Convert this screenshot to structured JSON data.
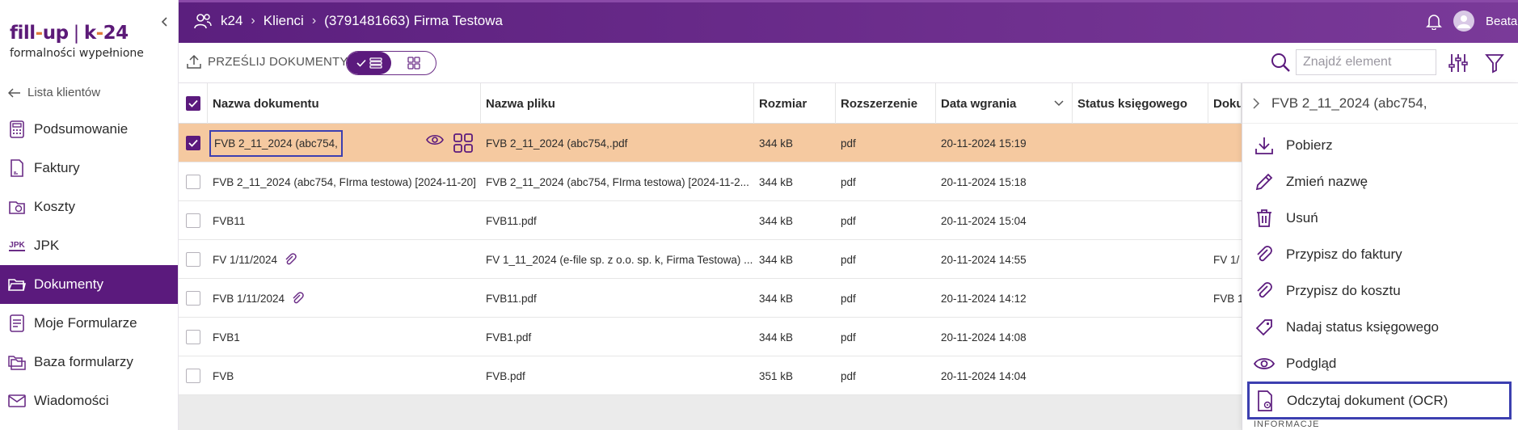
{
  "brand": {
    "logo_part1_a": "fill",
    "logo_part1_dash": "-",
    "logo_part1_b": "up",
    "logo_separator": "|",
    "logo_part2_a": "k",
    "logo_part2_dash": "-",
    "logo_part2_b": "24",
    "tagline": "formalności wypełnione"
  },
  "sidebar": {
    "back_label": "Lista klientów",
    "items": [
      {
        "label": "Podsumowanie",
        "icon": "calculator-icon"
      },
      {
        "label": "Faktury",
        "icon": "invoice-icon"
      },
      {
        "label": "Koszty",
        "icon": "costs-icon"
      },
      {
        "label": "JPK",
        "icon": "jpk-icon",
        "icon_text": "JPK"
      },
      {
        "label": "Dokumenty",
        "icon": "folder-icon",
        "active": true
      },
      {
        "label": "Moje Formularze",
        "icon": "form-icon"
      },
      {
        "label": "Baza formularzy",
        "icon": "folders-icon"
      },
      {
        "label": "Wiadomości",
        "icon": "mail-icon"
      }
    ]
  },
  "topbar": {
    "crumbs": [
      "k24",
      "Klienci",
      "(3791481663) Firma Testowa"
    ],
    "user_name": "Beata"
  },
  "toolbar": {
    "upload_label": "PRZEŚLIJ DOKUMENTY",
    "search_placeholder": "Znajdź element"
  },
  "table": {
    "columns": [
      "Nazwa dokumentu",
      "Nazwa pliku",
      "Rozmiar",
      "Rozszerzenie",
      "Data wgrania",
      "Status księgowego",
      "Doku"
    ],
    "rows": [
      {
        "name": "FVB 2_11_2024 (abc754,",
        "file": "FVB 2_11_2024 (abc754,.pdf",
        "size": "344 kB",
        "ext": "pdf",
        "date": "20-11-2024 15:19",
        "status": "",
        "doc": "",
        "selected": true,
        "clip": false
      },
      {
        "name": "FVB 2_11_2024 (abc754, FIrma testowa) [2024-11-20]",
        "file": "FVB 2_11_2024 (abc754, FIrma testowa) [2024-11-2...",
        "size": "344 kB",
        "ext": "pdf",
        "date": "20-11-2024 15:18",
        "status": "",
        "doc": "",
        "selected": false,
        "clip": false
      },
      {
        "name": "FVB11",
        "file": "FVB11.pdf",
        "size": "344 kB",
        "ext": "pdf",
        "date": "20-11-2024 15:04",
        "status": "",
        "doc": "",
        "selected": false,
        "clip": false
      },
      {
        "name": "FV 1/11/2024",
        "file": "FV 1_11_2024 (e-file sp. z o.o. sp. k, Firma Testowa) ...",
        "size": "344 kB",
        "ext": "pdf",
        "date": "20-11-2024 14:55",
        "status": "",
        "doc": "FV 1/",
        "selected": false,
        "clip": true
      },
      {
        "name": "FVB 1/11/2024",
        "file": "FVB11.pdf",
        "size": "344 kB",
        "ext": "pdf",
        "date": "20-11-2024 14:12",
        "status": "",
        "doc": "FVB 1",
        "selected": false,
        "clip": true
      },
      {
        "name": "FVB1",
        "file": "FVB1.pdf",
        "size": "344 kB",
        "ext": "pdf",
        "date": "20-11-2024 14:08",
        "status": "",
        "doc": "",
        "selected": false,
        "clip": false
      },
      {
        "name": "FVB",
        "file": "FVB.pdf",
        "size": "351 kB",
        "ext": "pdf",
        "date": "20-11-2024 14:04",
        "status": "",
        "doc": "",
        "selected": false,
        "clip": false
      }
    ]
  },
  "panel": {
    "title": "FVB 2_11_2024 (abc754,",
    "actions": [
      {
        "label": "Pobierz",
        "icon": "download-icon"
      },
      {
        "label": "Zmień nazwę",
        "icon": "pencil-icon"
      },
      {
        "label": "Usuń",
        "icon": "trash-icon"
      },
      {
        "label": "Przypisz do faktury",
        "icon": "paperclip-icon"
      },
      {
        "label": "Przypisz do kosztu",
        "icon": "paperclip-icon"
      },
      {
        "label": "Nadaj status księgowego",
        "icon": "tag-icon"
      },
      {
        "label": "Podgląd",
        "icon": "eye-icon"
      },
      {
        "label": "Odczytaj dokument (OCR)",
        "icon": "ocr-document-icon",
        "highlighted": true
      }
    ],
    "tail_text": "INFORMACJE"
  },
  "colors": {
    "brand_purple": "#5b1a7d",
    "accent_orange": "#e07b39",
    "selected_row": "#f5c9a0",
    "highlight_box": "#3c3fb0"
  }
}
